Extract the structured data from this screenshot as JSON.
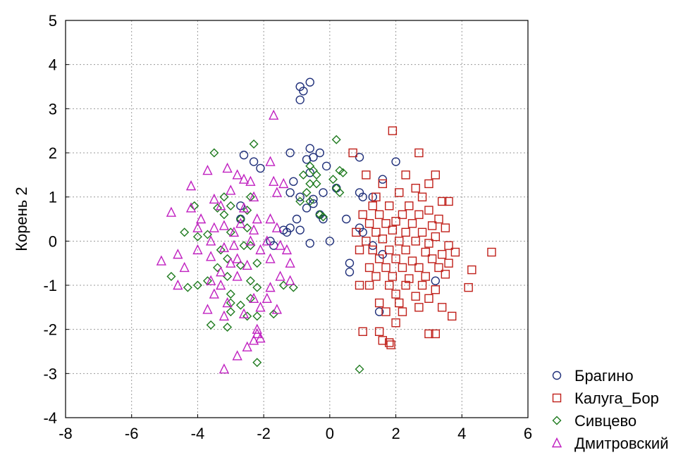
{
  "chart_data": {
    "type": "scatter",
    "title": "",
    "xlabel": "",
    "ylabel": "Корень 2",
    "xlim": [
      -8,
      6
    ],
    "ylim": [
      -4,
      5
    ],
    "x_ticks": [
      "-8",
      "-6",
      "-4",
      "-2",
      "0",
      "2",
      "4",
      "6"
    ],
    "y_ticks": [
      "-4",
      "-3",
      "-2",
      "-1",
      "0",
      "1",
      "2",
      "3",
      "4",
      "5"
    ],
    "grid": true,
    "legend_position": "bottom-right-outside",
    "series": [
      {
        "name": "Брагино",
        "marker": "circle",
        "color": "#1f2f7a",
        "points": [
          [
            -0.6,
            3.6
          ],
          [
            -0.8,
            3.4
          ],
          [
            -0.9,
            3.5
          ],
          [
            -0.9,
            3.2
          ],
          [
            -0.6,
            2.1
          ],
          [
            -0.3,
            2.0
          ],
          [
            -0.7,
            1.85
          ],
          [
            -0.5,
            1.9
          ],
          [
            -1.2,
            2.0
          ],
          [
            -2.6,
            1.95
          ],
          [
            -2.3,
            1.8
          ],
          [
            -2.1,
            1.65
          ],
          [
            0.9,
            1.9
          ],
          [
            2.0,
            1.8
          ],
          [
            -0.1,
            1.7
          ],
          [
            -0.6,
            1.55
          ],
          [
            -1.1,
            1.35
          ],
          [
            -1.2,
            1.1
          ],
          [
            -0.9,
            1.0
          ],
          [
            -0.5,
            0.95
          ],
          [
            -0.2,
            1.1
          ],
          [
            0.2,
            1.2
          ],
          [
            0.9,
            1.1
          ],
          [
            1.0,
            1.0
          ],
          [
            1.3,
            1.0
          ],
          [
            1.6,
            1.4
          ],
          [
            -0.7,
            0.75
          ],
          [
            -0.5,
            0.85
          ],
          [
            -0.3,
            0.6
          ],
          [
            -0.2,
            0.5
          ],
          [
            0.5,
            0.5
          ],
          [
            -1.0,
            0.5
          ],
          [
            -1.2,
            0.3
          ],
          [
            -1.3,
            0.2
          ],
          [
            -1.4,
            0.25
          ],
          [
            -0.9,
            0.25
          ],
          [
            -1.8,
            0.0
          ],
          [
            -1.7,
            -0.1
          ],
          [
            -0.6,
            -0.05
          ],
          [
            0.0,
            0.0
          ],
          [
            0.9,
            0.3
          ],
          [
            1.0,
            0.2
          ],
          [
            -2.7,
            0.8
          ],
          [
            -2.7,
            0.5
          ],
          [
            0.6,
            -0.5
          ],
          [
            0.6,
            -0.7
          ],
          [
            1.5,
            -1.6
          ],
          [
            3.2,
            -0.9
          ],
          [
            1.6,
            -0.3
          ],
          [
            1.3,
            -0.1
          ]
        ]
      },
      {
        "name": "Калуга_Бор",
        "marker": "square",
        "color": "#c0201a",
        "points": [
          [
            1.9,
            2.5
          ],
          [
            0.7,
            2.0
          ],
          [
            2.7,
            2.0
          ],
          [
            3.2,
            1.5
          ],
          [
            1.1,
            1.5
          ],
          [
            2.3,
            1.5
          ],
          [
            1.6,
            1.3
          ],
          [
            2.6,
            1.2
          ],
          [
            3.0,
            1.3
          ],
          [
            2.1,
            1.1
          ],
          [
            1.4,
            1.0
          ],
          [
            2.8,
            1.0
          ],
          [
            3.4,
            0.9
          ],
          [
            3.6,
            0.9
          ],
          [
            1.3,
            0.8
          ],
          [
            1.8,
            0.8
          ],
          [
            2.4,
            0.8
          ],
          [
            3.0,
            0.7
          ],
          [
            1.0,
            0.6
          ],
          [
            1.5,
            0.6
          ],
          [
            2.2,
            0.6
          ],
          [
            2.7,
            0.6
          ],
          [
            3.3,
            0.5
          ],
          [
            1.2,
            0.4
          ],
          [
            1.7,
            0.4
          ],
          [
            2.0,
            0.45
          ],
          [
            2.5,
            0.4
          ],
          [
            3.1,
            0.35
          ],
          [
            3.5,
            0.3
          ],
          [
            0.8,
            0.2
          ],
          [
            1.4,
            0.2
          ],
          [
            1.9,
            0.25
          ],
          [
            2.3,
            0.2
          ],
          [
            2.8,
            0.2
          ],
          [
            3.2,
            0.1
          ],
          [
            1.1,
            0.0
          ],
          [
            1.6,
            0.05
          ],
          [
            2.1,
            0.0
          ],
          [
            2.6,
            0.0
          ],
          [
            3.0,
            -0.05
          ],
          [
            3.6,
            -0.1
          ],
          [
            0.9,
            -0.2
          ],
          [
            1.3,
            -0.2
          ],
          [
            1.8,
            -0.2
          ],
          [
            2.3,
            -0.2
          ],
          [
            2.9,
            -0.25
          ],
          [
            3.4,
            -0.3
          ],
          [
            3.8,
            -0.25
          ],
          [
            4.9,
            -0.25
          ],
          [
            1.5,
            -0.4
          ],
          [
            2.0,
            -0.4
          ],
          [
            2.5,
            -0.45
          ],
          [
            3.1,
            -0.4
          ],
          [
            3.6,
            -0.5
          ],
          [
            1.2,
            -0.6
          ],
          [
            1.7,
            -0.6
          ],
          [
            2.2,
            -0.6
          ],
          [
            2.7,
            -0.6
          ],
          [
            3.3,
            -0.6
          ],
          [
            4.3,
            -0.65
          ],
          [
            1.4,
            -0.8
          ],
          [
            1.9,
            -0.8
          ],
          [
            2.4,
            -0.85
          ],
          [
            2.9,
            -0.8
          ],
          [
            3.5,
            -0.75
          ],
          [
            0.9,
            -1.0
          ],
          [
            1.2,
            -1.0
          ],
          [
            1.8,
            -1.0
          ],
          [
            2.3,
            -1.0
          ],
          [
            2.8,
            -1.0
          ],
          [
            3.2,
            -1.1
          ],
          [
            4.2,
            -1.05
          ],
          [
            2.0,
            -1.2
          ],
          [
            2.6,
            -1.25
          ],
          [
            3.0,
            -1.3
          ],
          [
            1.5,
            -1.4
          ],
          [
            2.1,
            -1.4
          ],
          [
            2.7,
            -1.5
          ],
          [
            3.4,
            -1.5
          ],
          [
            1.7,
            -1.6
          ],
          [
            2.2,
            -1.6
          ],
          [
            3.7,
            -1.7
          ],
          [
            2.0,
            -1.85
          ],
          [
            1.0,
            -2.05
          ],
          [
            1.5,
            -2.05
          ],
          [
            3.0,
            -2.1
          ],
          [
            3.2,
            -2.1
          ],
          [
            1.6,
            -2.25
          ],
          [
            1.8,
            -2.3
          ],
          [
            1.85,
            -2.35
          ]
        ]
      },
      {
        "name": "Сивцево",
        "marker": "diamond",
        "color": "#1e7a1e",
        "points": [
          [
            0.2,
            2.3
          ],
          [
            -3.5,
            2.0
          ],
          [
            -2.3,
            2.2
          ],
          [
            -0.6,
            1.7
          ],
          [
            -0.5,
            1.6
          ],
          [
            -0.4,
            1.5
          ],
          [
            0.3,
            1.6
          ],
          [
            0.4,
            1.55
          ],
          [
            -0.8,
            1.5
          ],
          [
            -0.6,
            1.3
          ],
          [
            -0.4,
            1.3
          ],
          [
            0.1,
            1.4
          ],
          [
            0.2,
            1.2
          ],
          [
            0.3,
            1.1
          ],
          [
            -0.7,
            1.1
          ],
          [
            -0.6,
            0.9
          ],
          [
            -0.9,
            0.9
          ],
          [
            -2.4,
            1.0
          ],
          [
            -3.2,
            1.0
          ],
          [
            -3.0,
            0.8
          ],
          [
            -3.4,
            0.75
          ],
          [
            -2.5,
            0.7
          ],
          [
            -3.2,
            0.6
          ],
          [
            -2.7,
            0.5
          ],
          [
            -0.3,
            0.6
          ],
          [
            -0.2,
            0.55
          ],
          [
            -4.1,
            0.8
          ],
          [
            -4.4,
            0.2
          ],
          [
            -4.0,
            0.1
          ],
          [
            -3.7,
            0.15
          ],
          [
            -3.0,
            0.2
          ],
          [
            -2.5,
            0.3
          ],
          [
            -2.4,
            -0.1
          ],
          [
            -2.6,
            -0.1
          ],
          [
            -3.3,
            -0.2
          ],
          [
            -3.1,
            -0.4
          ],
          [
            -2.2,
            -0.5
          ],
          [
            -2.7,
            -0.55
          ],
          [
            -3.4,
            -0.6
          ],
          [
            -3.7,
            -0.9
          ],
          [
            -4.0,
            -1.0
          ],
          [
            -4.8,
            -0.8
          ],
          [
            -4.3,
            -1.05
          ],
          [
            -3.1,
            -0.8
          ],
          [
            -2.4,
            -0.9
          ],
          [
            -2.2,
            -1.05
          ],
          [
            -1.1,
            -1.05
          ],
          [
            -1.4,
            -1.0
          ],
          [
            -3.0,
            -1.2
          ],
          [
            -2.4,
            -1.3
          ],
          [
            -2.7,
            -1.45
          ],
          [
            -3.0,
            -1.4
          ],
          [
            -2.5,
            -1.7
          ],
          [
            -2.2,
            -1.7
          ],
          [
            -3.0,
            -1.6
          ],
          [
            -3.6,
            -1.9
          ],
          [
            -3.1,
            -1.95
          ],
          [
            -1.7,
            -1.65
          ],
          [
            -2.2,
            -2.75
          ],
          [
            0.9,
            -2.9
          ]
        ]
      },
      {
        "name": "Дмитровский",
        "marker": "triangle",
        "color": "#c020c0",
        "points": [
          [
            -1.7,
            2.85
          ],
          [
            -1.8,
            1.8
          ],
          [
            -3.1,
            1.65
          ],
          [
            -3.7,
            1.6
          ],
          [
            -2.8,
            1.5
          ],
          [
            -2.6,
            1.4
          ],
          [
            -2.4,
            1.35
          ],
          [
            -1.7,
            1.35
          ],
          [
            -1.4,
            1.3
          ],
          [
            -4.2,
            1.25
          ],
          [
            -3.0,
            1.15
          ],
          [
            -2.3,
            1.0
          ],
          [
            -1.6,
            1.1
          ],
          [
            -3.5,
            0.95
          ],
          [
            -3.3,
            0.8
          ],
          [
            -2.6,
            0.75
          ],
          [
            -4.2,
            0.75
          ],
          [
            -4.8,
            0.65
          ],
          [
            -3.9,
            0.5
          ],
          [
            -2.2,
            0.5
          ],
          [
            -1.8,
            0.5
          ],
          [
            -2.7,
            0.4
          ],
          [
            -3.2,
            0.35
          ],
          [
            -3.5,
            0.3
          ],
          [
            -4.0,
            0.3
          ],
          [
            -1.6,
            0.3
          ],
          [
            -2.3,
            0.25
          ],
          [
            -2.9,
            0.2
          ],
          [
            -3.6,
            0.0
          ],
          [
            -2.4,
            0.0
          ],
          [
            -1.9,
            0.0
          ],
          [
            -2.9,
            -0.1
          ],
          [
            -3.2,
            -0.15
          ],
          [
            -1.5,
            -0.1
          ],
          [
            -1.3,
            -0.2
          ],
          [
            -2.1,
            -0.2
          ],
          [
            -4.0,
            -0.2
          ],
          [
            -4.6,
            -0.3
          ],
          [
            -3.6,
            -0.35
          ],
          [
            -2.8,
            -0.4
          ],
          [
            -1.8,
            -0.4
          ],
          [
            -5.1,
            -0.45
          ],
          [
            -3.0,
            -0.5
          ],
          [
            -2.5,
            -0.55
          ],
          [
            -1.2,
            -0.5
          ],
          [
            -4.4,
            -0.6
          ],
          [
            -3.3,
            -0.7
          ],
          [
            -1.5,
            -0.8
          ],
          [
            -2.8,
            -0.8
          ],
          [
            -1.2,
            -0.9
          ],
          [
            -3.6,
            -0.9
          ],
          [
            -4.6,
            -1.0
          ],
          [
            -3.3,
            -1.0
          ],
          [
            -1.8,
            -1.05
          ],
          [
            -3.5,
            -1.2
          ],
          [
            -2.3,
            -1.3
          ],
          [
            -1.9,
            -1.3
          ],
          [
            -3.1,
            -1.4
          ],
          [
            -2.1,
            -1.5
          ],
          [
            -1.6,
            -1.55
          ],
          [
            -3.7,
            -1.55
          ],
          [
            -2.6,
            -1.65
          ],
          [
            -3.2,
            -1.7
          ],
          [
            -2.2,
            -2.0
          ],
          [
            -2.2,
            -2.1
          ],
          [
            -2.1,
            -2.2
          ],
          [
            -2.3,
            -2.25
          ],
          [
            -2.5,
            -2.4
          ],
          [
            -2.8,
            -2.6
          ],
          [
            -3.2,
            -2.9
          ]
        ]
      }
    ]
  }
}
